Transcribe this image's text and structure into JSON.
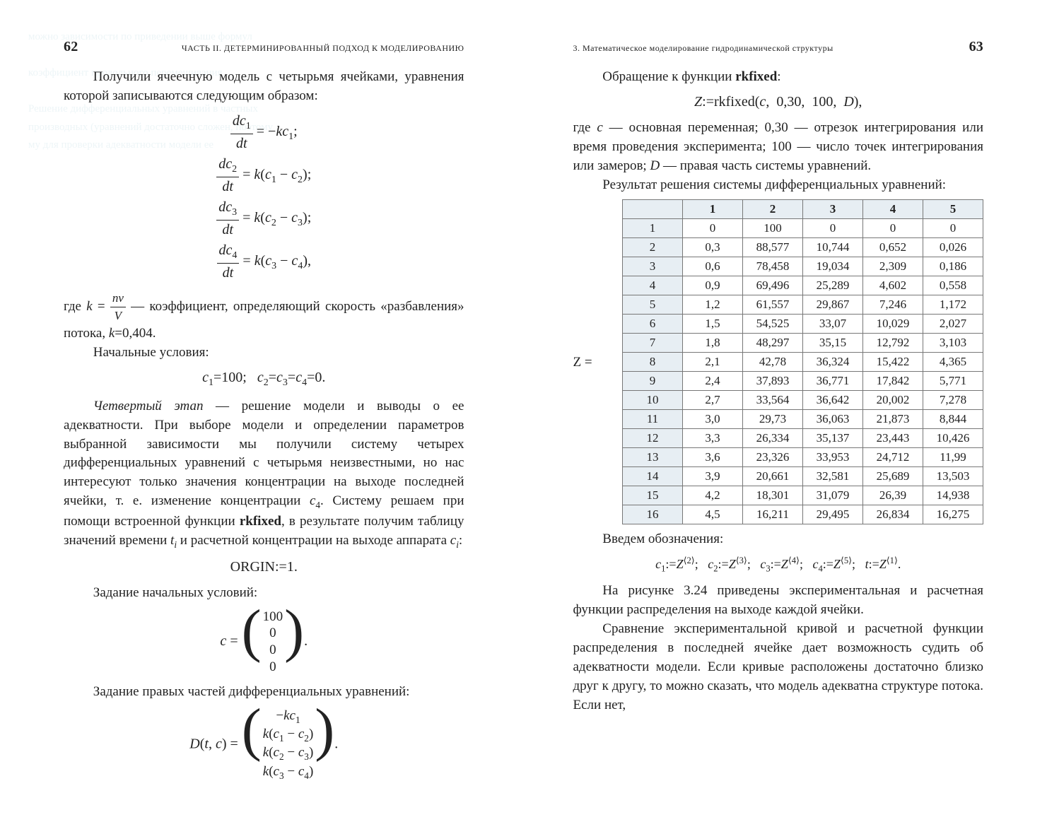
{
  "left": {
    "pageNumber": "62",
    "runhead": "ЧАСТЬ II. ДЕТЕРМИНИРОВАННЫЙ ПОДХОД К МОДЕЛИРОВАНИЮ",
    "p1": "Получили ячеечную модель с четырьмя ячейками, уравнения которой записываются следующим образом:",
    "eq1": [
      "dc_1/dt = -kc_1;",
      "dc_2/dt = k(c_1 - c_2);",
      "dc_3/dt = k(c_2 - c_3);",
      "dc_4/dt = k(c_3 - c_4),"
    ],
    "p2a": "где ",
    "p2b": " — коэффициент, определяющий скорость «разбавления» потока, ",
    "kfrac": {
      "num": "nv",
      "den": "V"
    },
    "kval": "k=0,404.",
    "p3": "Начальные условия:",
    "eq2": "c_1=100;   c_2=c_3=c_4=0.",
    "p4": "Четвертый этап — решение модели и выводы о ее адекватности. При выборе модели и определении параметров выбранной зависимости мы получили систему четырех дифференциальных уравнений с четырьмя неизвестными, но нас интересуют только значения концентрации на выходе последней ячейки, т. е. изменение концентрации c_4. Систему решаем при помощи встроенной функции rkfixed, в результате получим таблицу значений времени t_i и расчетной концентрации на выходе аппарата c_i:",
    "orgin": "ORGIN:=1.",
    "p5": "Задание начальных условий:",
    "cvec": [
      "100",
      "0",
      "0",
      "0"
    ],
    "p6": "Задание правых частей дифференциальных уравнений:",
    "dvec": [
      "-kc_1",
      "k(c_1 - c_2)",
      "k(c_2 - c_3)",
      "k(c_3 - c_4)"
    ]
  },
  "right": {
    "pageNumber": "63",
    "runhead": "3. Математическое моделирование гидродинамической структуры",
    "p1": "Обращение к функции rkfixed:",
    "eq": "Z:=rkfixed(c,  0,30,  100,  D),",
    "p2": "где c — основная переменная; 0,30 — отрезок интегрирования или время проведения эксперимента; 100 — число точек интегрирования или замеров; D — правая часть системы уравнений.",
    "p3": "Результат решения системы дифференциальных уравнений:",
    "zLabel": "Z =",
    "table": {
      "headers": [
        "",
        "1",
        "2",
        "3",
        "4",
        "5"
      ],
      "rows": [
        [
          "1",
          "0",
          "100",
          "0",
          "0",
          "0"
        ],
        [
          "2",
          "0,3",
          "88,577",
          "10,744",
          "0,652",
          "0,026"
        ],
        [
          "3",
          "0,6",
          "78,458",
          "19,034",
          "2,309",
          "0,186"
        ],
        [
          "4",
          "0,9",
          "69,496",
          "25,289",
          "4,602",
          "0,558"
        ],
        [
          "5",
          "1,2",
          "61,557",
          "29,867",
          "7,246",
          "1,172"
        ],
        [
          "6",
          "1,5",
          "54,525",
          "33,07",
          "10,029",
          "2,027"
        ],
        [
          "7",
          "1,8",
          "48,297",
          "35,15",
          "12,792",
          "3,103"
        ],
        [
          "8",
          "2,1",
          "42,78",
          "36,324",
          "15,422",
          "4,365"
        ],
        [
          "9",
          "2,4",
          "37,893",
          "36,771",
          "17,842",
          "5,771"
        ],
        [
          "10",
          "2,7",
          "33,564",
          "36,642",
          "20,002",
          "7,278"
        ],
        [
          "11",
          "3,0",
          "29,73",
          "36,063",
          "21,873",
          "8,844"
        ],
        [
          "12",
          "3,3",
          "26,334",
          "35,137",
          "23,443",
          "10,426"
        ],
        [
          "13",
          "3,6",
          "23,326",
          "33,953",
          "24,712",
          "11,99"
        ],
        [
          "14",
          "3,9",
          "20,661",
          "32,581",
          "25,689",
          "13,503"
        ],
        [
          "15",
          "4,2",
          "18,301",
          "31,079",
          "26,39",
          "14,938"
        ],
        [
          "16",
          "4,5",
          "16,211",
          "29,495",
          "26,834",
          "16,275"
        ]
      ]
    },
    "p4": "Введем обозначения:",
    "defs": "c_1:=Z^(2);   c_2:=Z^(3);   c_3:=Z^(4);   c_4:=Z^(5);   t:=Z^(1).",
    "p5": "На рисунке 3.24 приведены экспериментальная и расчетная функции распределения на выходе каждой ячейки.",
    "p6": "Сравнение экспериментальной кривой и расчетной функции распределения в последней ячейке дает возможность судить об адекватности модели. Если кривые расположены достаточно близко друг к другу, то можно сказать, что модель адекватна структуре потока. Если нет,"
  },
  "colors": {
    "border": "#777",
    "headerBg": "rgba(120,160,190,.18)"
  }
}
